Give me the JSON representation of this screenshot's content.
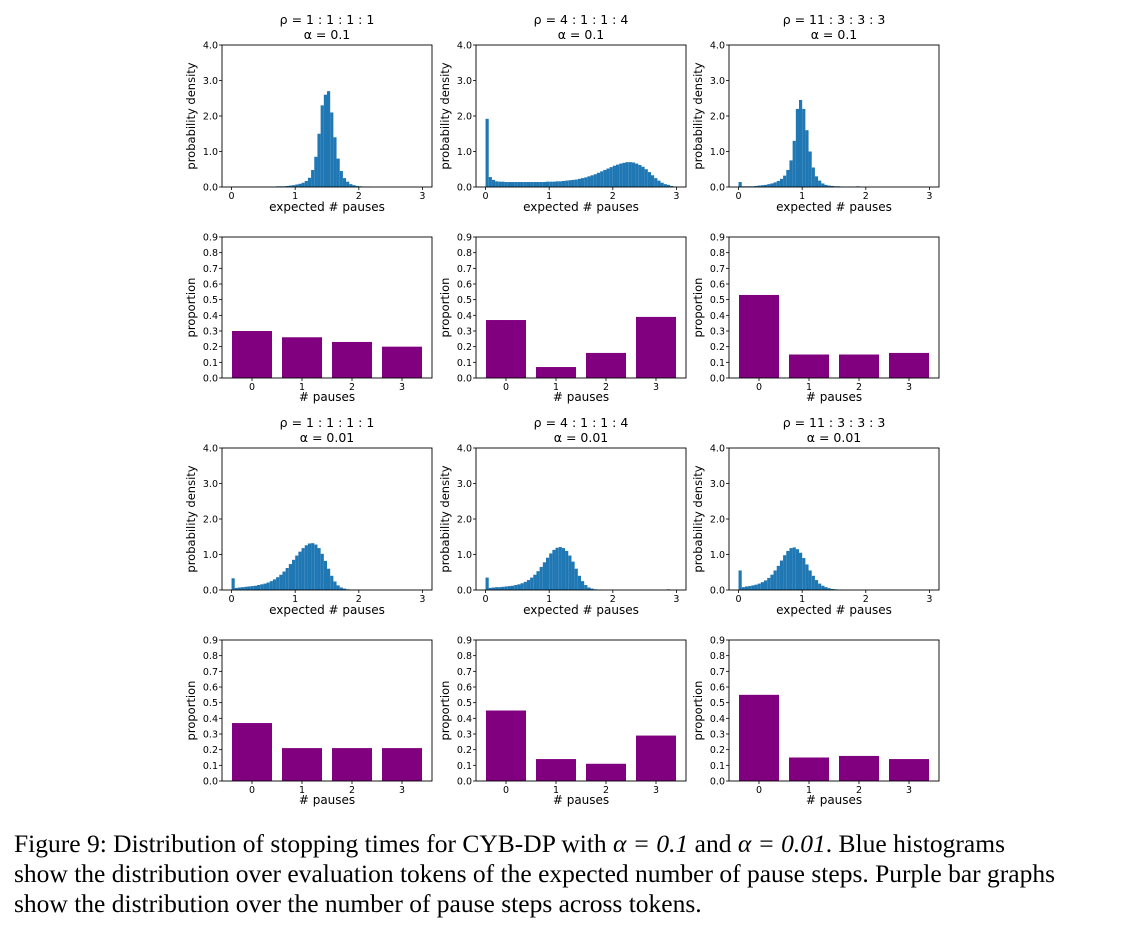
{
  "colors": {
    "histogram": "#1f77b4",
    "bars": "#800080",
    "axes": "#000000"
  },
  "chart_data": [
    {
      "type": "bar",
      "subtype": "histogram",
      "panel": "row1-col1",
      "title_line1": "ρ = 1 : 1 : 1 : 1",
      "title_line2": "α = 0.1",
      "xlabel": "expected # pauses",
      "ylabel": "probability density",
      "xlim": [
        -0.15,
        3.15
      ],
      "ylim": [
        0,
        4.0
      ],
      "xticks": [
        0,
        1,
        2,
        3
      ],
      "yticks": [
        0.0,
        1.0,
        2.0,
        3.0,
        4.0
      ],
      "ytick_labels": [
        "0.0",
        "1.0",
        "2.0",
        "3.0",
        "4.0"
      ],
      "bin_start": 0,
      "bin_width": 0.05,
      "values": [
        0.01,
        0.01,
        0.01,
        0.01,
        0.01,
        0.01,
        0.01,
        0.01,
        0.01,
        0.01,
        0.01,
        0.01,
        0.01,
        0.01,
        0.02,
        0.02,
        0.02,
        0.03,
        0.04,
        0.05,
        0.07,
        0.09,
        0.12,
        0.17,
        0.26,
        0.48,
        0.85,
        1.5,
        2.3,
        2.6,
        2.7,
        2.1,
        1.4,
        0.8,
        0.45,
        0.25,
        0.15,
        0.08,
        0.05,
        0.03,
        0.02,
        0.01,
        0.01,
        0.01,
        0,
        0,
        0,
        0,
        0,
        0,
        0,
        0,
        0,
        0,
        0,
        0,
        0,
        0,
        0,
        0
      ]
    },
    {
      "type": "bar",
      "subtype": "histogram",
      "panel": "row1-col2",
      "title_line1": "ρ = 4 : 1 : 1 : 4",
      "title_line2": "α = 0.1",
      "xlabel": "expected # pauses",
      "ylabel": "probability density",
      "xlim": [
        -0.15,
        3.15
      ],
      "ylim": [
        0,
        4.0
      ],
      "xticks": [
        0,
        1,
        2,
        3
      ],
      "yticks": [
        0.0,
        1.0,
        2.0,
        3.0,
        4.0
      ],
      "ytick_labels": [
        "0.0",
        "1.0",
        "2.0",
        "3.0",
        "4.0"
      ],
      "bin_start": 0,
      "bin_width": 0.05,
      "values": [
        1.92,
        0.28,
        0.2,
        0.16,
        0.15,
        0.15,
        0.14,
        0.14,
        0.14,
        0.14,
        0.14,
        0.14,
        0.14,
        0.14,
        0.14,
        0.14,
        0.14,
        0.14,
        0.14,
        0.15,
        0.15,
        0.15,
        0.16,
        0.16,
        0.17,
        0.18,
        0.19,
        0.2,
        0.21,
        0.23,
        0.25,
        0.27,
        0.3,
        0.33,
        0.36,
        0.4,
        0.44,
        0.48,
        0.52,
        0.56,
        0.6,
        0.63,
        0.66,
        0.68,
        0.7,
        0.7,
        0.69,
        0.66,
        0.62,
        0.57,
        0.5,
        0.42,
        0.33,
        0.25,
        0.18,
        0.12,
        0.08,
        0.06,
        0.03,
        0.01
      ]
    },
    {
      "type": "bar",
      "subtype": "histogram",
      "panel": "row1-col3",
      "title_line1": "ρ = 11 : 3 : 3 : 3",
      "title_line2": "α = 0.1",
      "xlabel": "expected # pauses",
      "ylabel": "probability density",
      "xlim": [
        -0.15,
        3.15
      ],
      "ylim": [
        0,
        4.0
      ],
      "xticks": [
        0,
        1,
        2,
        3
      ],
      "yticks": [
        0.0,
        1.0,
        2.0,
        3.0,
        4.0
      ],
      "ytick_labels": [
        "0.0",
        "1.0",
        "2.0",
        "3.0",
        "4.0"
      ],
      "bin_start": 0,
      "bin_width": 0.05,
      "values": [
        0.14,
        0.02,
        0.02,
        0.02,
        0.02,
        0.03,
        0.04,
        0.05,
        0.06,
        0.08,
        0.1,
        0.13,
        0.17,
        0.23,
        0.32,
        0.48,
        0.75,
        1.3,
        2.2,
        2.45,
        2.2,
        1.6,
        1.0,
        0.55,
        0.3,
        0.18,
        0.1,
        0.06,
        0.04,
        0.03,
        0.02,
        0.02,
        0.01,
        0.01,
        0.01,
        0.01,
        0,
        0.02,
        0,
        0,
        0,
        0,
        0,
        0,
        0,
        0,
        0,
        0,
        0,
        0,
        0,
        0,
        0,
        0,
        0,
        0,
        0,
        0,
        0,
        0
      ]
    },
    {
      "type": "bar",
      "panel": "row2-col1",
      "categories": [
        "0",
        "1",
        "2",
        "3"
      ],
      "values": [
        0.3,
        0.26,
        0.23,
        0.2
      ],
      "xlabel": "# pauses",
      "ylabel": "proportion",
      "ylim": [
        0,
        0.9
      ],
      "yticks": [
        0.0,
        0.1,
        0.2,
        0.3,
        0.4,
        0.5,
        0.6,
        0.7,
        0.8,
        0.9
      ],
      "ytick_labels": [
        "0.0",
        "0.1",
        "0.2",
        "0.3",
        "0.4",
        "0.5",
        "0.6",
        "0.7",
        "0.8",
        "0.9"
      ]
    },
    {
      "type": "bar",
      "panel": "row2-col2",
      "categories": [
        "0",
        "1",
        "2",
        "3"
      ],
      "values": [
        0.37,
        0.07,
        0.16,
        0.39
      ],
      "xlabel": "# pauses",
      "ylabel": "proportion",
      "ylim": [
        0,
        0.9
      ],
      "yticks": [
        0.0,
        0.1,
        0.2,
        0.3,
        0.4,
        0.5,
        0.6,
        0.7,
        0.8,
        0.9
      ],
      "ytick_labels": [
        "0.0",
        "0.1",
        "0.2",
        "0.3",
        "0.4",
        "0.5",
        "0.6",
        "0.7",
        "0.8",
        "0.9"
      ]
    },
    {
      "type": "bar",
      "panel": "row2-col3",
      "categories": [
        "0",
        "1",
        "2",
        "3"
      ],
      "values": [
        0.53,
        0.15,
        0.15,
        0.16
      ],
      "xlabel": "# pauses",
      "ylabel": "proportion",
      "ylim": [
        0,
        0.9
      ],
      "yticks": [
        0.0,
        0.1,
        0.2,
        0.3,
        0.4,
        0.5,
        0.6,
        0.7,
        0.8,
        0.9
      ],
      "ytick_labels": [
        "0.0",
        "0.1",
        "0.2",
        "0.3",
        "0.4",
        "0.5",
        "0.6",
        "0.7",
        "0.8",
        "0.9"
      ]
    },
    {
      "type": "bar",
      "subtype": "histogram",
      "panel": "row3-col1",
      "title_line1": "ρ = 1 : 1 : 1 : 1",
      "title_line2": "α = 0.01",
      "xlabel": "expected # pauses",
      "ylabel": "probability density",
      "xlim": [
        -0.15,
        3.15
      ],
      "ylim": [
        0,
        4.0
      ],
      "xticks": [
        0,
        1,
        2,
        3
      ],
      "yticks": [
        0.0,
        1.0,
        2.0,
        3.0,
        4.0
      ],
      "ytick_labels": [
        "0.0",
        "1.0",
        "2.0",
        "3.0",
        "4.0"
      ],
      "bin_start": 0,
      "bin_width": 0.05,
      "values": [
        0.33,
        0.06,
        0.07,
        0.08,
        0.09,
        0.1,
        0.11,
        0.12,
        0.14,
        0.16,
        0.18,
        0.21,
        0.25,
        0.3,
        0.36,
        0.43,
        0.52,
        0.62,
        0.73,
        0.85,
        0.97,
        1.08,
        1.18,
        1.26,
        1.31,
        1.32,
        1.28,
        1.18,
        1.02,
        0.82,
        0.6,
        0.4,
        0.24,
        0.13,
        0.07,
        0.04,
        0.02,
        0.01,
        0.01,
        0,
        0,
        0,
        0,
        0,
        0,
        0,
        0,
        0,
        0,
        0,
        0,
        0,
        0,
        0,
        0,
        0,
        0,
        0,
        0,
        0
      ]
    },
    {
      "type": "bar",
      "subtype": "histogram",
      "panel": "row3-col2",
      "title_line1": "ρ = 4 : 1 : 1 : 4",
      "title_line2": "α = 0.01",
      "xlabel": "expected # pauses",
      "ylabel": "probability density",
      "xlim": [
        -0.15,
        3.15
      ],
      "ylim": [
        0,
        4.0
      ],
      "xticks": [
        0,
        1,
        2,
        3
      ],
      "yticks": [
        0.0,
        1.0,
        2.0,
        3.0,
        4.0
      ],
      "ytick_labels": [
        "0.0",
        "1.0",
        "2.0",
        "3.0",
        "4.0"
      ],
      "bin_start": 0,
      "bin_width": 0.05,
      "values": [
        0.35,
        0.06,
        0.07,
        0.08,
        0.08,
        0.09,
        0.1,
        0.11,
        0.12,
        0.14,
        0.16,
        0.19,
        0.23,
        0.28,
        0.35,
        0.43,
        0.53,
        0.65,
        0.78,
        0.91,
        1.03,
        1.13,
        1.19,
        1.21,
        1.18,
        1.1,
        0.97,
        0.8,
        0.6,
        0.4,
        0.25,
        0.14,
        0.07,
        0.04,
        0.02,
        0.01,
        0.01,
        0,
        0,
        0,
        0,
        0,
        0,
        0,
        0,
        0,
        0,
        0,
        0,
        0,
        0,
        0,
        0,
        0,
        0,
        0,
        0,
        0.02,
        0,
        0
      ]
    },
    {
      "type": "bar",
      "subtype": "histogram",
      "panel": "row3-col3",
      "title_line1": "ρ = 11 : 3 : 3 : 3",
      "title_line2": "α = 0.01",
      "xlabel": "expected # pauses",
      "ylabel": "probability density",
      "xlim": [
        -0.15,
        3.15
      ],
      "ylim": [
        0,
        4.0
      ],
      "xticks": [
        0,
        1,
        2,
        3
      ],
      "yticks": [
        0.0,
        1.0,
        2.0,
        3.0,
        4.0
      ],
      "ytick_labels": [
        "0.0",
        "1.0",
        "2.0",
        "3.0",
        "4.0"
      ],
      "bin_start": 0,
      "bin_width": 0.05,
      "values": [
        0.55,
        0.08,
        0.1,
        0.11,
        0.13,
        0.15,
        0.18,
        0.22,
        0.27,
        0.34,
        0.43,
        0.55,
        0.68,
        0.83,
        0.98,
        1.1,
        1.18,
        1.2,
        1.15,
        1.05,
        0.9,
        0.72,
        0.55,
        0.4,
        0.28,
        0.18,
        0.12,
        0.08,
        0.05,
        0.03,
        0.02,
        0.01,
        0.01,
        0,
        0,
        0,
        0,
        0,
        0,
        0,
        0,
        0,
        0,
        0,
        0,
        0,
        0,
        0,
        0,
        0,
        0,
        0,
        0,
        0,
        0,
        0,
        0,
        0,
        0,
        0
      ]
    },
    {
      "type": "bar",
      "panel": "row4-col1",
      "categories": [
        "0",
        "1",
        "2",
        "3"
      ],
      "values": [
        0.37,
        0.21,
        0.21,
        0.21
      ],
      "xlabel": "# pauses",
      "ylabel": "proportion",
      "ylim": [
        0,
        0.9
      ],
      "yticks": [
        0.0,
        0.1,
        0.2,
        0.3,
        0.4,
        0.5,
        0.6,
        0.7,
        0.8,
        0.9
      ],
      "ytick_labels": [
        "0.0",
        "0.1",
        "0.2",
        "0.3",
        "0.4",
        "0.5",
        "0.6",
        "0.7",
        "0.8",
        "0.9"
      ]
    },
    {
      "type": "bar",
      "panel": "row4-col2",
      "categories": [
        "0",
        "1",
        "2",
        "3"
      ],
      "values": [
        0.45,
        0.14,
        0.11,
        0.29
      ],
      "xlabel": "# pauses",
      "ylabel": "proportion",
      "ylim": [
        0,
        0.9
      ],
      "yticks": [
        0.0,
        0.1,
        0.2,
        0.3,
        0.4,
        0.5,
        0.6,
        0.7,
        0.8,
        0.9
      ],
      "ytick_labels": [
        "0.0",
        "0.1",
        "0.2",
        "0.3",
        "0.4",
        "0.5",
        "0.6",
        "0.7",
        "0.8",
        "0.9"
      ]
    },
    {
      "type": "bar",
      "panel": "row4-col3",
      "categories": [
        "0",
        "1",
        "2",
        "3"
      ],
      "values": [
        0.55,
        0.15,
        0.16,
        0.14
      ],
      "xlabel": "# pauses",
      "ylabel": "proportion",
      "ylim": [
        0,
        0.9
      ],
      "yticks": [
        0.0,
        0.1,
        0.2,
        0.3,
        0.4,
        0.5,
        0.6,
        0.7,
        0.8,
        0.9
      ],
      "ytick_labels": [
        "0.0",
        "0.1",
        "0.2",
        "0.3",
        "0.4",
        "0.5",
        "0.6",
        "0.7",
        "0.8",
        "0.9"
      ]
    }
  ],
  "caption": {
    "label": "Figure 9:",
    "line1_a": "Distribution of stopping times for CYB-DP with ",
    "math_1": "α = 0.1",
    "line1_b": " and ",
    "math_2": "α = 0.01",
    "line1_c": ". Blue histograms",
    "line2": "show the distribution over evaluation tokens of the expected number of pause steps. Purple bar graphs",
    "line3": "show the distribution over the number of pause steps across tokens."
  }
}
